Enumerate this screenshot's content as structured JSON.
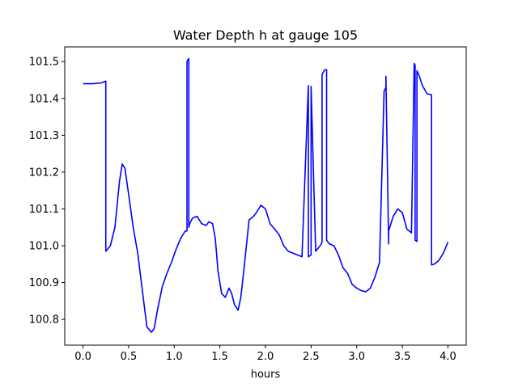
{
  "chart_data": {
    "type": "line",
    "title": "Water Depth h at gauge 105",
    "xlabel": "hours",
    "ylabel": "",
    "xlim": [
      -0.2,
      4.2
    ],
    "ylim": [
      100.73,
      101.54
    ],
    "xticks": [
      0.0,
      0.5,
      1.0,
      1.5,
      2.0,
      2.5,
      3.0,
      3.5,
      4.0
    ],
    "xtick_labels": [
      "0.0",
      "0.5",
      "1.0",
      "1.5",
      "2.0",
      "2.5",
      "3.0",
      "3.5",
      "4.0"
    ],
    "yticks": [
      100.8,
      100.9,
      101.0,
      101.1,
      101.2,
      101.3,
      101.4,
      101.5
    ],
    "ytick_labels": [
      "100.8",
      "100.9",
      "101.0",
      "101.1",
      "101.2",
      "101.3",
      "101.4",
      "101.5"
    ],
    "grid": false,
    "series": [
      {
        "color": "#0000ff",
        "x": [
          0.0,
          0.1,
          0.2,
          0.25,
          0.25,
          0.3,
          0.35,
          0.4,
          0.43,
          0.46,
          0.5,
          0.55,
          0.6,
          0.65,
          0.7,
          0.75,
          0.78,
          0.82,
          0.87,
          0.92,
          0.97,
          1.02,
          1.07,
          1.12,
          1.14,
          1.14,
          1.15,
          1.16,
          1.16,
          1.17,
          1.2,
          1.25,
          1.3,
          1.35,
          1.38,
          1.42,
          1.45,
          1.48,
          1.52,
          1.56,
          1.6,
          1.63,
          1.66,
          1.7,
          1.73,
          1.77,
          1.82,
          1.87,
          1.9,
          1.95,
          2.0,
          2.05,
          2.1,
          2.15,
          2.2,
          2.25,
          2.3,
          2.35,
          2.4,
          2.47,
          2.47,
          2.5,
          2.5,
          2.55,
          2.6,
          2.62,
          2.62,
          2.65,
          2.67,
          2.67,
          2.7,
          2.75,
          2.8,
          2.85,
          2.9,
          2.95,
          3.0,
          3.05,
          3.1,
          3.15,
          3.2,
          3.25,
          3.3,
          3.32,
          3.32,
          3.35,
          3.35,
          3.4,
          3.45,
          3.5,
          3.55,
          3.6,
          3.63,
          3.64,
          3.64,
          3.66,
          3.66,
          3.68,
          3.72,
          3.77,
          3.82,
          3.82,
          3.85,
          3.9,
          3.95,
          4.0
        ],
        "y": [
          101.44,
          101.44,
          101.442,
          101.447,
          100.985,
          101.0,
          101.05,
          101.175,
          101.222,
          101.21,
          101.14,
          101.05,
          100.98,
          100.88,
          100.78,
          100.765,
          100.775,
          100.83,
          100.89,
          100.925,
          100.955,
          100.99,
          101.02,
          101.04,
          101.04,
          101.5,
          101.505,
          101.508,
          101.05,
          101.06,
          101.075,
          101.08,
          101.06,
          101.055,
          101.065,
          101.06,
          101.02,
          100.93,
          100.87,
          100.86,
          100.885,
          100.87,
          100.84,
          100.825,
          100.86,
          100.95,
          101.07,
          101.08,
          101.09,
          101.11,
          101.1,
          101.06,
          101.045,
          101.03,
          101.0,
          100.985,
          100.98,
          100.975,
          100.97,
          101.435,
          100.97,
          100.975,
          101.433,
          100.985,
          101.0,
          101.01,
          101.465,
          101.478,
          101.478,
          101.015,
          101.005,
          101.0,
          100.975,
          100.94,
          100.925,
          100.895,
          100.885,
          100.878,
          100.875,
          100.885,
          100.915,
          100.955,
          101.42,
          101.43,
          101.46,
          101.005,
          101.04,
          101.08,
          101.1,
          101.09,
          101.045,
          101.035,
          101.495,
          101.49,
          101.015,
          101.012,
          101.475,
          101.465,
          101.435,
          101.413,
          101.41,
          100.948,
          100.95,
          100.96,
          100.98,
          101.01
        ]
      }
    ]
  }
}
